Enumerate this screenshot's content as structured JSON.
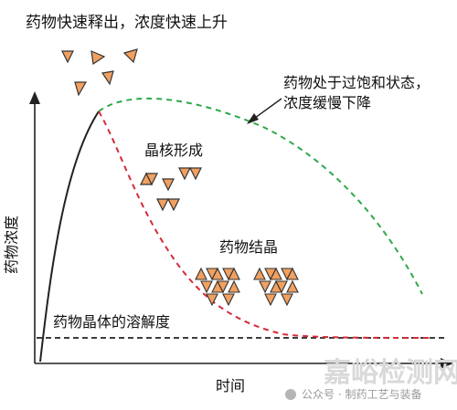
{
  "diagram": {
    "top_label": "药物快速释出，浓度快速上升",
    "supersaturation_label_line1": "药物处于过饱和状态，",
    "supersaturation_label_line2": "浓度缓慢下降",
    "nucleation_label": "晶核形成",
    "crystallization_label": "药物结晶",
    "solubility_label": "药物晶体的溶解度",
    "y_axis_label": "药物浓度",
    "x_axis_label": "时间"
  },
  "watermark": {
    "main": "嘉峪检测网",
    "sub": "公众号 · 制药工艺与装备"
  },
  "colors": {
    "crystal_fill": "#f0a060",
    "crystal_stroke": "#333333",
    "green_curve": "#2fa84a",
    "red_curve": "#d42a3a",
    "black_curve": "#222222"
  }
}
